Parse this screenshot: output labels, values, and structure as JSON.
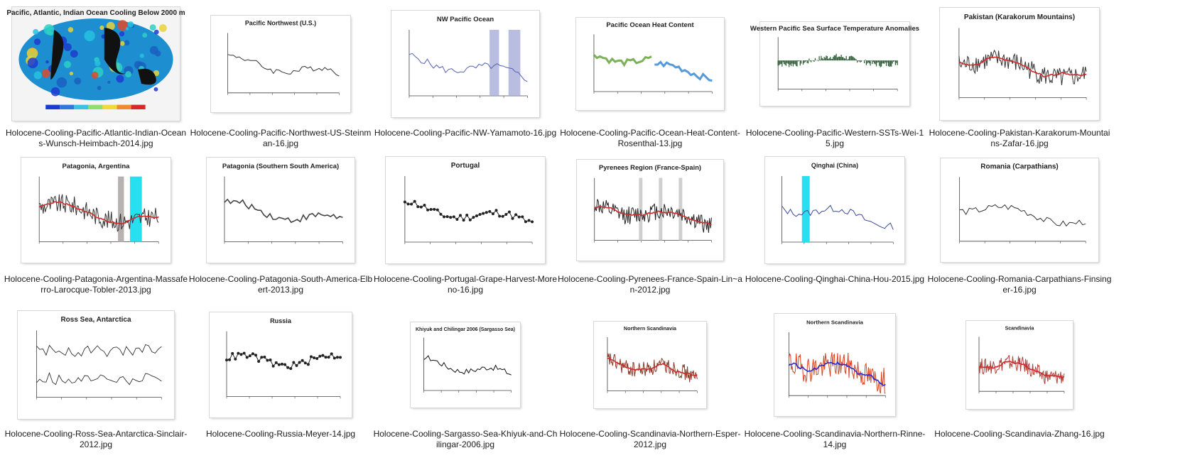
{
  "view": "large-icons",
  "files": [
    {
      "name": "Holocene-Cooling-Pacific-Atlantic-Indian-Oceans-Wunsch-Heimbach-2014.jpg",
      "thumb_title": "Pacific, Atlantic, Indian Ocean Cooling Below 2000 m",
      "style": "map",
      "line_color": "#1e3bd1"
    },
    {
      "name": "Holocene-Cooling-Pacific-Northwest-US-Steinman-16.jpg",
      "thumb_title": "Pacific Northwest (U.S.)",
      "style": "line",
      "line_color": "#333333"
    },
    {
      "name": "Holocene-Cooling-Pacific-NW-Yamamoto-16.jpg",
      "thumb_title": "NW Pacific Ocean",
      "style": "line-band",
      "line_color": "#5561b3"
    },
    {
      "name": "Holocene-Cooling-Pacific-Ocean-Heat-Content-Rosenthal-13.jpg",
      "thumb_title": "Pacific Ocean Heat Content",
      "style": "two-series",
      "line_color": "#5c9e2e"
    },
    {
      "name": "Holocene-Cooling-Pacific-Western-SSTs-Wei-15.jpg",
      "thumb_title": "Western Pacific Sea Surface Temperature Anomalies",
      "style": "bars",
      "line_color": "#2b5a33"
    },
    {
      "name": "Holocene-Cooling-Pakistan-Karakorum-Mountains-Zafar-16.jpg",
      "thumb_title": "Pakistan (Karakorum Mountains)",
      "style": "noisy",
      "line_color": "#333333"
    },
    {
      "name": "Holocene-Cooling-Patagonia-Argentina-Massaferro-Larocque-Tobler-2013.jpg",
      "thumb_title": "Patagonia, Argentina",
      "style": "noisy-band",
      "line_color": "#333333"
    },
    {
      "name": "Holocene-Cooling-Patagonia-South-America-Elbert-2013.jpg",
      "thumb_title": "Patagonia (Southern South America)",
      "style": "smooth",
      "line_color": "#444444"
    },
    {
      "name": "Holocene-Cooling-Portugal-Grape-Harvest-Moreno-16.jpg",
      "thumb_title": "Portugal",
      "style": "dots",
      "line_color": "#222222"
    },
    {
      "name": "Holocene-Cooling-Pyrenees-France-Spain-Lin~an-2012.jpg",
      "thumb_title": "Pyrenees Region (France-Spain)",
      "style": "dense",
      "line_color": "#222222"
    },
    {
      "name": "Holocene-Cooling-Qinghai-China-Hou-2015.jpg",
      "thumb_title": "Qinghai (China)",
      "style": "line-cyan",
      "line_color": "#3b4a9a"
    },
    {
      "name": "Holocene-Cooling-Romania-Carpathians-Finsinger-16.jpg",
      "thumb_title": "Romania (Carpathians)",
      "style": "line",
      "line_color": "#333333"
    },
    {
      "name": "Holocene-Cooling-Ross-Sea-Antarctica-Sinclair-2012.jpg",
      "thumb_title": "Ross Sea, Antarctica",
      "style": "two-panel",
      "line_color": "#333333"
    },
    {
      "name": "Holocene-Cooling-Russia-Meyer-14.jpg",
      "thumb_title": "Russia",
      "style": "dots-top",
      "line_color": "#222222"
    },
    {
      "name": "Holocene-Cooling-Sargasso-Sea-Khiyuk-and-Chilingar-2006.jpg",
      "thumb_title": "Khiyuk and Chilingar 2006 (Sargasso Sea)",
      "style": "line",
      "line_color": "#111111"
    },
    {
      "name": "Holocene-Cooling-Scandinavia-Northern-Esper-2012.jpg",
      "thumb_title": "Northern Scandinavia",
      "style": "noisy",
      "line_color": "#8a3b2a"
    },
    {
      "name": "Holocene-Cooling-Scandinavia-Northern-Rinne-14.jpg",
      "thumb_title": "Northern Scandinavia",
      "style": "spiky",
      "line_color": "#d9421f"
    },
    {
      "name": "Holocene-Cooling-Scandinavia-Zhang-16.jpg",
      "thumb_title": "Scandinavia",
      "style": "noisy",
      "line_color": "#b0413a"
    }
  ]
}
